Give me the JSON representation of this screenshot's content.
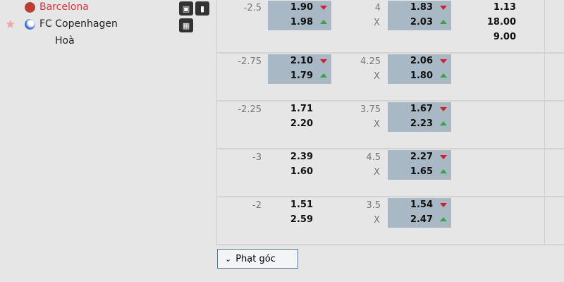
{
  "match": {
    "home": "Barcelona",
    "away": "FC Copenhagen",
    "draw": "Hoà"
  },
  "rows": [
    {
      "hcap": "-2.5",
      "h1": "1.90",
      "h1dir": "down",
      "h2": "1.98",
      "h2dir": "up",
      "hl": true,
      "ou": "4",
      "o1": "1.83",
      "o1dir": "down",
      "o2": "2.03",
      "o2dir": "up",
      "ouhl": true,
      "x12": [
        "1.13",
        "18.00",
        "9.00"
      ]
    },
    {
      "hcap": "-2.75",
      "h1": "2.10",
      "h1dir": "down",
      "h2": "1.79",
      "h2dir": "up",
      "hl": true,
      "ou": "4.25",
      "o1": "2.06",
      "o1dir": "down",
      "o2": "1.80",
      "o2dir": "up",
      "ouhl": true
    },
    {
      "hcap": "-2.25",
      "h1": "1.71",
      "h2": "2.20",
      "hl": false,
      "ou": "3.75",
      "o1": "1.67",
      "o1dir": "down",
      "o2": "2.23",
      "o2dir": "up",
      "ouhl": true
    },
    {
      "hcap": "-3",
      "h1": "2.39",
      "h2": "1.60",
      "hl": false,
      "ou": "4.5",
      "o1": "2.27",
      "o1dir": "down",
      "o2": "1.65",
      "o2dir": "up",
      "ouhl": true
    },
    {
      "hcap": "-2",
      "h1": "1.51",
      "h2": "2.59",
      "hl": false,
      "ou": "3.5",
      "o1": "1.54",
      "o1dir": "down",
      "o2": "2.47",
      "o2dir": "up",
      "ouhl": true
    }
  ],
  "under_label": "X",
  "corner_button": "Phạt góc",
  "colors": {
    "highlight": "#a9b8c5",
    "down": "#d0202a",
    "up": "#3aa345",
    "home": "#d9363e"
  }
}
